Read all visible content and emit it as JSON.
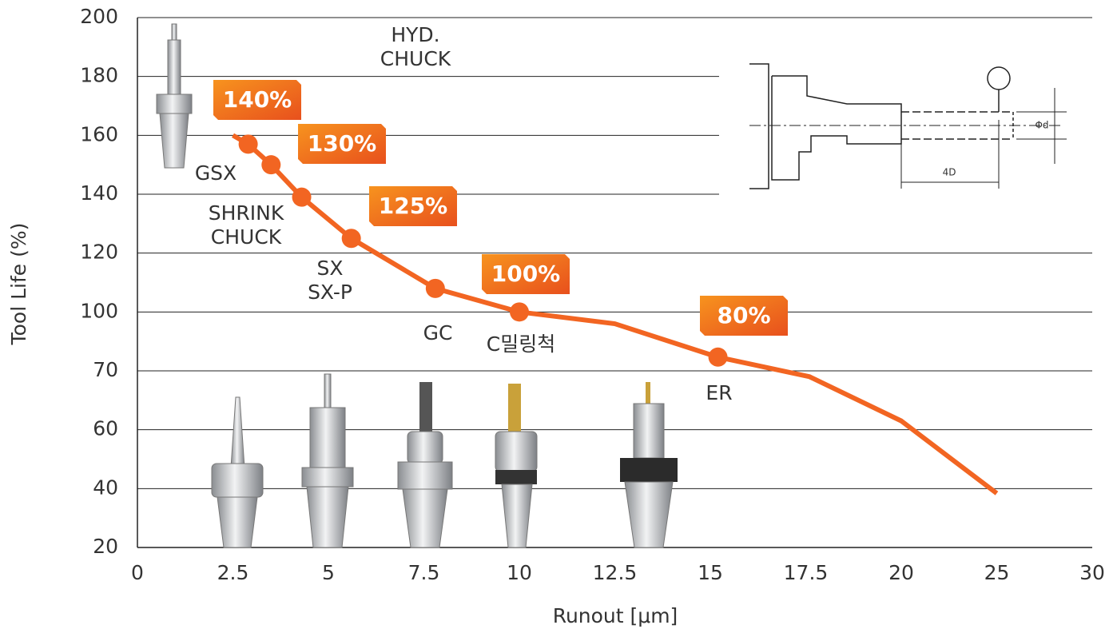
{
  "chart_data": {
    "type": "line",
    "x_label": "Runout [μm]",
    "y_label": "Tool Life (%)",
    "xlim": [
      0,
      30
    ],
    "ylim": [
      20,
      200
    ],
    "xticks": [
      0,
      2.5,
      5,
      7.5,
      10,
      12.5,
      15,
      17.5,
      20,
      25,
      30
    ],
    "yticks": [
      20,
      40,
      60,
      70,
      100,
      120,
      140,
      160,
      180,
      200
    ],
    "grid": true,
    "series": [
      {
        "type": "line",
        "color": "#f26522",
        "x": [
          2.5,
          2.9,
          3.5,
          4.3,
          5.6,
          7.8,
          10,
          12.5,
          15.2,
          17.6,
          20,
          25
        ],
        "values": [
          160,
          157,
          150,
          139,
          125,
          108,
          100,
          94,
          77,
          69,
          61.5,
          38.4
        ]
      },
      {
        "type": "scatter",
        "color": "#f26522",
        "x": [
          2.9,
          3.5,
          4.3,
          5.6,
          7.8,
          10,
          15.2
        ],
        "values": [
          157,
          150,
          139,
          125,
          108,
          100,
          77
        ]
      }
    ],
    "badges": [
      "140%",
      "130%",
      "125%",
      "100%",
      "80%"
    ],
    "annotations": [
      [
        "HYD.",
        "CHUCK"
      ],
      [
        "GSX"
      ],
      [
        "SHRINK",
        "CHUCK"
      ],
      [
        "SX",
        "SX-P"
      ],
      [
        "GC"
      ],
      [
        "C밀링척"
      ],
      [
        "ER"
      ]
    ],
    "diagram": {
      "diameter_label": "Φd",
      "length_label": "4D"
    }
  }
}
